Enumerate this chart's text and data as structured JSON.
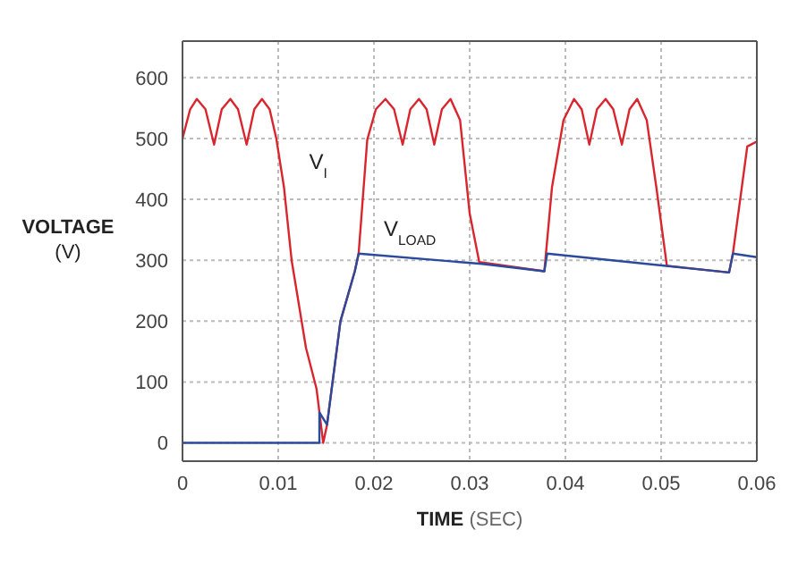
{
  "chart_data": {
    "type": "line",
    "xlabel": "TIME (SEC)",
    "ylabel": "VOLTAGE (V)",
    "xlim": [
      0,
      0.06
    ],
    "xticks": [
      0,
      0.01,
      0.02,
      0.03,
      0.04,
      0.05,
      0.06
    ],
    "ylim": [
      -30,
      660
    ],
    "yticks": [
      0,
      100,
      200,
      300,
      400,
      500,
      600
    ],
    "grid": true,
    "marker": "none",
    "line_style": "solid",
    "annotations": [
      {
        "text": "V$_{I}$",
        "x": 0.0106,
        "y": 420
      },
      {
        "text": "V$_{LOAD}$",
        "x": 0.0184,
        "y": 311
      }
    ],
    "series": [
      {
        "color": "#d9262e",
        "x": [
          0,
          0.0008,
          0.0015,
          0.0024,
          0.0033,
          0.0041,
          0.005,
          0.0058,
          0.0067,
          0.0075,
          0.0083,
          0.0091,
          0.0098,
          0.0106,
          0.0114,
          0.0129,
          0.014,
          0.0147,
          0.0151,
          0.0165,
          0.018,
          0.0184,
          0.0193,
          0.0202,
          0.0212,
          0.0221,
          0.023,
          0.0238,
          0.0247,
          0.0255,
          0.0263,
          0.0271,
          0.028,
          0.029,
          0.03,
          0.031,
          0.0378,
          0.0386,
          0.0398,
          0.0409,
          0.0417,
          0.0425,
          0.0433,
          0.0442,
          0.045,
          0.0459,
          0.0467,
          0.0475,
          0.0485,
          0.0495,
          0.0506,
          0.0571,
          0.0575,
          0.059,
          0.06
        ],
        "values": [
          500,
          548,
          565,
          548,
          490,
          548,
          565,
          548,
          490,
          548,
          565,
          548,
          500,
          420,
          300,
          156,
          89,
          0,
          30,
          200,
          282,
          311,
          498,
          548,
          565,
          548,
          490,
          548,
          565,
          548,
          490,
          548,
          565,
          530,
          377,
          297,
          282,
          420,
          530,
          565,
          548,
          490,
          548,
          565,
          548,
          490,
          548,
          565,
          530,
          420,
          291,
          280,
          311,
          487,
          495
        ]
      },
      {
        "color": "#2b4a9c",
        "x": [
          0,
          0.0143,
          0.0143,
          0.0151,
          0.0165,
          0.018,
          0.0184,
          0.0313,
          0.0378,
          0.0381,
          0.0571,
          0.0575,
          0.06
        ],
        "values": [
          0,
          0,
          50,
          30,
          200,
          282,
          311,
          294,
          282,
          311,
          280,
          311,
          305
        ]
      }
    ]
  }
}
